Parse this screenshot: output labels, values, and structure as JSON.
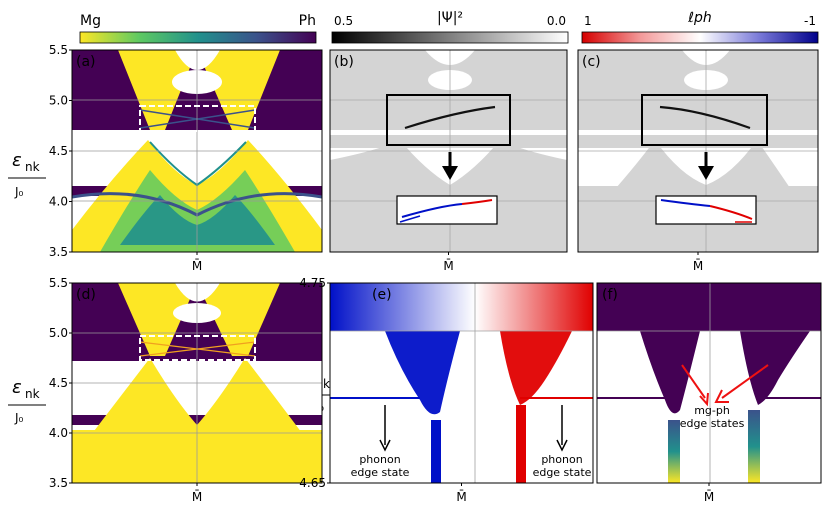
{
  "colorbars": [
    {
      "left_label": "Mg",
      "right_label": "Ph",
      "title": "",
      "colors": [
        "#fde725",
        "#5ec962",
        "#21918c",
        "#3b528b",
        "#440154"
      ]
    },
    {
      "left_label": "0.5",
      "right_label": "0.0",
      "title": "|Ψ|²",
      "colors": [
        "#000000",
        "#ffffff"
      ]
    },
    {
      "left_label": "1",
      "right_label": "-1",
      "title": "ℓph",
      "colors": [
        "#d60000",
        "#f39a9a",
        "#ffffff",
        "#7a7ad8",
        "#00008b"
      ]
    }
  ],
  "colors": {
    "yellow": "#fde725",
    "viridis_dark": "#440154",
    "viridis_teal": "#21918c",
    "viridis_green": "#5ec962",
    "gray_band": "#d4d4d4",
    "red": "#e00000",
    "blue": "#0010c8"
  },
  "y_axis_label": {
    "main": "ε",
    "sub": "nk",
    "denom": "J₀"
  },
  "x_tick_label": "M̄",
  "chart_data": [
    {
      "type": "other",
      "panel": "(a)",
      "ylim": [
        3.5,
        5.5
      ],
      "yticks": [
        "3.5",
        "4.0",
        "4.5",
        "5.0",
        "5.5"
      ],
      "xtick": "M̄",
      "grid": true
    },
    {
      "type": "other",
      "panel": "(b)",
      "ylim": [
        3.5,
        5.5
      ],
      "yticks": [],
      "xtick": "M̄",
      "grid": true
    },
    {
      "type": "other",
      "panel": "(c)",
      "ylim": [
        3.5,
        5.5
      ],
      "yticks": [],
      "xtick": "M̄",
      "grid": true
    },
    {
      "type": "other",
      "panel": "(d)",
      "ylim": [
        3.5,
        5.5
      ],
      "yticks": [
        "3.5",
        "4.0",
        "4.5",
        "5.0",
        "5.5"
      ],
      "xtick": "M̄",
      "grid": true
    },
    {
      "type": "other",
      "panel": "(e)",
      "ylim": [
        4.65,
        4.75
      ],
      "yticks": [
        "4.65",
        "4.75"
      ],
      "xtick": "M̄",
      "grid": true,
      "annotations": [
        "phonon edge state",
        "phonon edge state"
      ]
    },
    {
      "type": "other",
      "panel": "(f)",
      "ylim": [
        4.65,
        4.75
      ],
      "yticks": [],
      "xtick": "M̄",
      "grid": true,
      "annotations": [
        "mg-ph edge states"
      ]
    }
  ],
  "annotations": {
    "phonon_line1": "phonon",
    "phonon_line2": "edge state",
    "mgph_line1": "mg-ph",
    "mgph_line2": "edge states"
  }
}
